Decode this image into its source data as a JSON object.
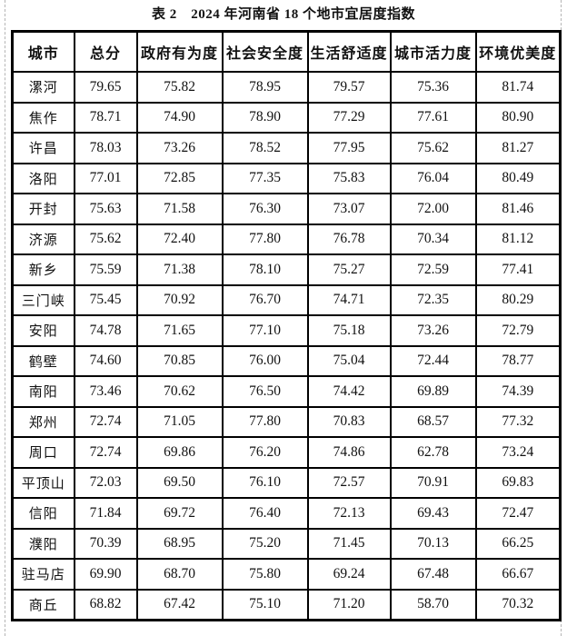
{
  "title": "表 2　2024 年河南省 18 个地市宜居度指数",
  "table": {
    "columns": [
      "城市",
      "总分",
      "政府有为度",
      "社会安全度",
      "生活舒适度",
      "城市活力度",
      "环境优美度"
    ],
    "rows": [
      [
        "漯河",
        "79.65",
        "75.82",
        "78.95",
        "79.57",
        "75.36",
        "81.74"
      ],
      [
        "焦作",
        "78.71",
        "74.90",
        "78.90",
        "77.29",
        "77.61",
        "80.90"
      ],
      [
        "许昌",
        "78.03",
        "73.26",
        "78.52",
        "77.95",
        "75.62",
        "81.27"
      ],
      [
        "洛阳",
        "77.01",
        "72.85",
        "77.35",
        "75.83",
        "76.04",
        "80.49"
      ],
      [
        "开封",
        "75.63",
        "71.58",
        "76.30",
        "73.07",
        "72.00",
        "81.46"
      ],
      [
        "济源",
        "75.62",
        "72.40",
        "77.80",
        "76.78",
        "70.34",
        "81.12"
      ],
      [
        "新乡",
        "75.59",
        "71.38",
        "78.10",
        "75.27",
        "72.59",
        "77.41"
      ],
      [
        "三门峡",
        "75.45",
        "70.92",
        "76.70",
        "74.71",
        "72.35",
        "80.29"
      ],
      [
        "安阳",
        "74.78",
        "71.65",
        "77.10",
        "75.18",
        "73.26",
        "72.79"
      ],
      [
        "鹤壁",
        "74.60",
        "70.85",
        "76.00",
        "75.04",
        "72.44",
        "78.77"
      ],
      [
        "南阳",
        "73.46",
        "70.62",
        "76.50",
        "74.42",
        "69.89",
        "74.39"
      ],
      [
        "郑州",
        "72.74",
        "71.05",
        "77.80",
        "70.83",
        "68.57",
        "77.32"
      ],
      [
        "周口",
        "72.74",
        "69.86",
        "76.20",
        "74.86",
        "62.78",
        "73.24"
      ],
      [
        "平顶山",
        "72.03",
        "69.50",
        "76.10",
        "72.57",
        "70.91",
        "69.83"
      ],
      [
        "信阳",
        "71.84",
        "69.72",
        "76.40",
        "72.13",
        "69.43",
        "72.47"
      ],
      [
        "濮阳",
        "70.39",
        "68.95",
        "75.20",
        "71.45",
        "70.13",
        "66.25"
      ],
      [
        "驻马店",
        "69.90",
        "68.70",
        "75.80",
        "69.24",
        "67.48",
        "66.67"
      ],
      [
        "商丘",
        "68.82",
        "67.42",
        "75.10",
        "71.20",
        "58.70",
        "70.32"
      ]
    ]
  },
  "colors": {
    "text": "#111111",
    "border": "#000000",
    "margin_guide": "#b5b5b5",
    "background": "#ffffff"
  }
}
